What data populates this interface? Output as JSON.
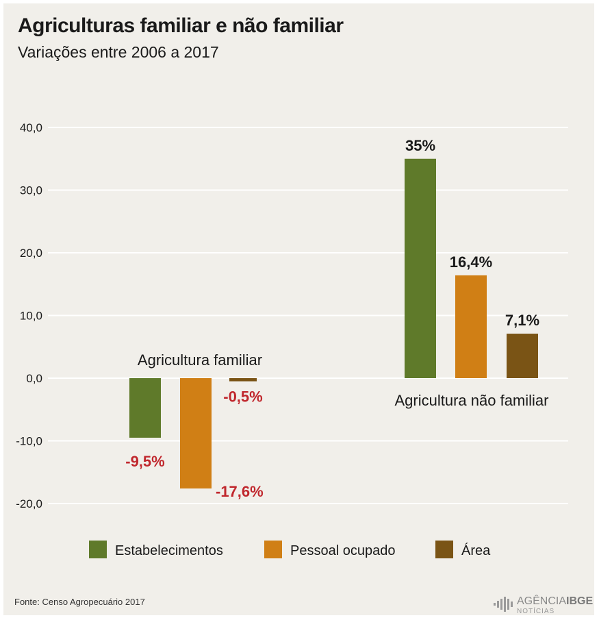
{
  "title": "Agriculturas familiar e não familiar",
  "subtitle": "Variações entre 2006 a 2017",
  "source": "Fonte: Censo Agropecuário 2017",
  "logo": {
    "name_part1": "AGÊNCIA",
    "name_part2": "IBGE",
    "sub": "NOTÍCIAS"
  },
  "colors": {
    "background": "#f1efea",
    "estabelecimentos": "#5f7a2a",
    "pessoal": "#d07f15",
    "area": "#7a5415",
    "negative_label": "#c0272d",
    "positive_label": "#1a1a1a",
    "grid": "#ffffff"
  },
  "chart_data": {
    "type": "bar",
    "ylim": [
      -20,
      40
    ],
    "yticks": [
      -20,
      -10,
      0,
      10,
      20,
      30,
      40
    ],
    "ytick_labels": [
      "-20,0",
      "-10,0",
      "0,0",
      "10,0",
      "20,0",
      "30,0",
      "40,0"
    ],
    "categories": [
      "Agricultura familiar",
      "Agricultura não familiar"
    ],
    "series": [
      {
        "name": "Estabelecimentos",
        "values": [
          -9.5,
          35
        ],
        "labels": [
          "-9,5%",
          "35%"
        ]
      },
      {
        "name": "Pessoal ocupado",
        "values": [
          -17.6,
          16.4
        ],
        "labels": [
          "-17,6%",
          "16,4%"
        ]
      },
      {
        "name": "Área",
        "values": [
          -0.5,
          7.1
        ],
        "labels": [
          "-0,5%",
          "7,1%"
        ]
      }
    ],
    "legend_position": "bottom",
    "grid": true
  }
}
